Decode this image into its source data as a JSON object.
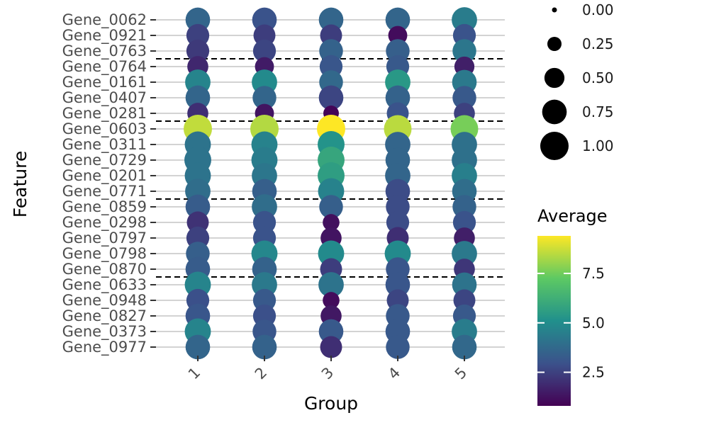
{
  "chart_data": {
    "type": "dotplot",
    "xlabel": "Group",
    "ylabel": "Feature",
    "x_categories": [
      "1",
      "2",
      "3",
      "4",
      "5"
    ],
    "y_categories": [
      "Gene_0062",
      "Gene_0921",
      "Gene_0763",
      "Gene_0764",
      "Gene_0161",
      "Gene_0407",
      "Gene_0281",
      "Gene_0603",
      "Gene_0311",
      "Gene_0729",
      "Gene_0201",
      "Gene_0771",
      "Gene_0859",
      "Gene_0298",
      "Gene_0797",
      "Gene_0798",
      "Gene_0870",
      "Gene_0633",
      "Gene_0948",
      "Gene_0827",
      "Gene_0373",
      "Gene_0977"
    ],
    "separators_after": [
      "Gene_0763",
      "Gene_0281",
      "Gene_0771",
      "Gene_0870"
    ],
    "color_legend": {
      "title": "Average",
      "ticks": [
        "2.5",
        "5.0",
        "7.5"
      ],
      "tick_values": [
        2.5,
        5.0,
        7.5
      ],
      "range": [
        0.8,
        9.4
      ],
      "palette": [
        "#440154",
        "#3b528b",
        "#21908c",
        "#5dc963",
        "#fde725"
      ]
    },
    "size_legend": {
      "labels": [
        "0.00",
        "0.25",
        "0.50",
        "0.75",
        "1.00"
      ],
      "values": [
        0.0,
        0.25,
        0.5,
        0.75,
        1.0
      ]
    },
    "averages": [
      [
        3.6,
        3.0,
        3.6,
        3.6,
        4.4
      ],
      [
        2.5,
        2.4,
        2.4,
        1.1,
        3.0
      ],
      [
        2.3,
        2.6,
        3.5,
        3.4,
        4.2
      ],
      [
        1.8,
        1.5,
        3.1,
        3.2,
        1.6
      ],
      [
        4.7,
        4.9,
        3.7,
        5.4,
        4.3
      ],
      [
        3.6,
        3.6,
        2.6,
        3.5,
        3.2
      ],
      [
        2.0,
        1.3,
        0.9,
        3.0,
        2.5
      ],
      [
        8.6,
        8.4,
        9.4,
        8.5,
        7.6
      ],
      [
        4.1,
        4.6,
        5.2,
        3.6,
        4.0
      ],
      [
        4.1,
        4.4,
        5.9,
        3.6,
        4.0
      ],
      [
        4.1,
        4.2,
        5.6,
        3.6,
        4.5
      ],
      [
        3.9,
        3.4,
        4.6,
        2.8,
        3.9
      ],
      [
        3.3,
        3.9,
        3.4,
        2.8,
        3.5
      ],
      [
        2.1,
        3.0,
        1.2,
        2.8,
        3.0
      ],
      [
        2.5,
        3.0,
        1.3,
        2.0,
        1.6
      ],
      [
        3.4,
        4.8,
        4.9,
        4.9,
        4.3
      ],
      [
        3.3,
        3.5,
        2.4,
        3.1,
        2.2
      ],
      [
        4.7,
        4.3,
        4.1,
        3.1,
        4.1
      ],
      [
        2.9,
        3.2,
        1.1,
        2.6,
        2.6
      ],
      [
        3.1,
        2.9,
        1.4,
        3.2,
        3.2
      ],
      [
        4.7,
        3.1,
        3.2,
        3.2,
        4.4
      ],
      [
        3.6,
        3.5,
        2.0,
        3.2,
        3.7
      ]
    ],
    "proportions": [
      [
        0.75,
        0.75,
        0.75,
        0.75,
        0.8
      ],
      [
        0.65,
        0.6,
        0.6,
        0.45,
        0.65
      ],
      [
        0.65,
        0.65,
        0.7,
        0.7,
        0.7
      ],
      [
        0.55,
        0.45,
        0.65,
        0.65,
        0.5
      ],
      [
        0.8,
        0.8,
        0.7,
        0.8,
        0.75
      ],
      [
        0.75,
        0.7,
        0.75,
        0.75,
        0.7
      ],
      [
        0.55,
        0.45,
        0.3,
        0.6,
        0.55
      ],
      [
        1.0,
        1.0,
        1.0,
        0.95,
        0.95
      ],
      [
        0.85,
        0.85,
        0.9,
        0.8,
        0.8
      ],
      [
        0.9,
        0.85,
        0.9,
        0.75,
        0.8
      ],
      [
        0.85,
        0.8,
        0.9,
        0.8,
        0.8
      ],
      [
        0.8,
        0.75,
        0.85,
        0.75,
        0.75
      ],
      [
        0.75,
        0.8,
        0.7,
        0.7,
        0.7
      ],
      [
        0.6,
        0.65,
        0.35,
        0.65,
        0.65
      ],
      [
        0.65,
        0.65,
        0.55,
        0.6,
        0.55
      ],
      [
        0.7,
        0.85,
        0.85,
        0.85,
        0.8
      ],
      [
        0.75,
        0.75,
        0.6,
        0.7,
        0.55
      ],
      [
        0.85,
        0.8,
        0.8,
        0.75,
        0.75
      ],
      [
        0.65,
        0.65,
        0.35,
        0.6,
        0.6
      ],
      [
        0.75,
        0.65,
        0.55,
        0.7,
        0.65
      ],
      [
        0.85,
        0.7,
        0.75,
        0.75,
        0.8
      ],
      [
        0.75,
        0.75,
        0.6,
        0.7,
        0.75
      ]
    ]
  }
}
